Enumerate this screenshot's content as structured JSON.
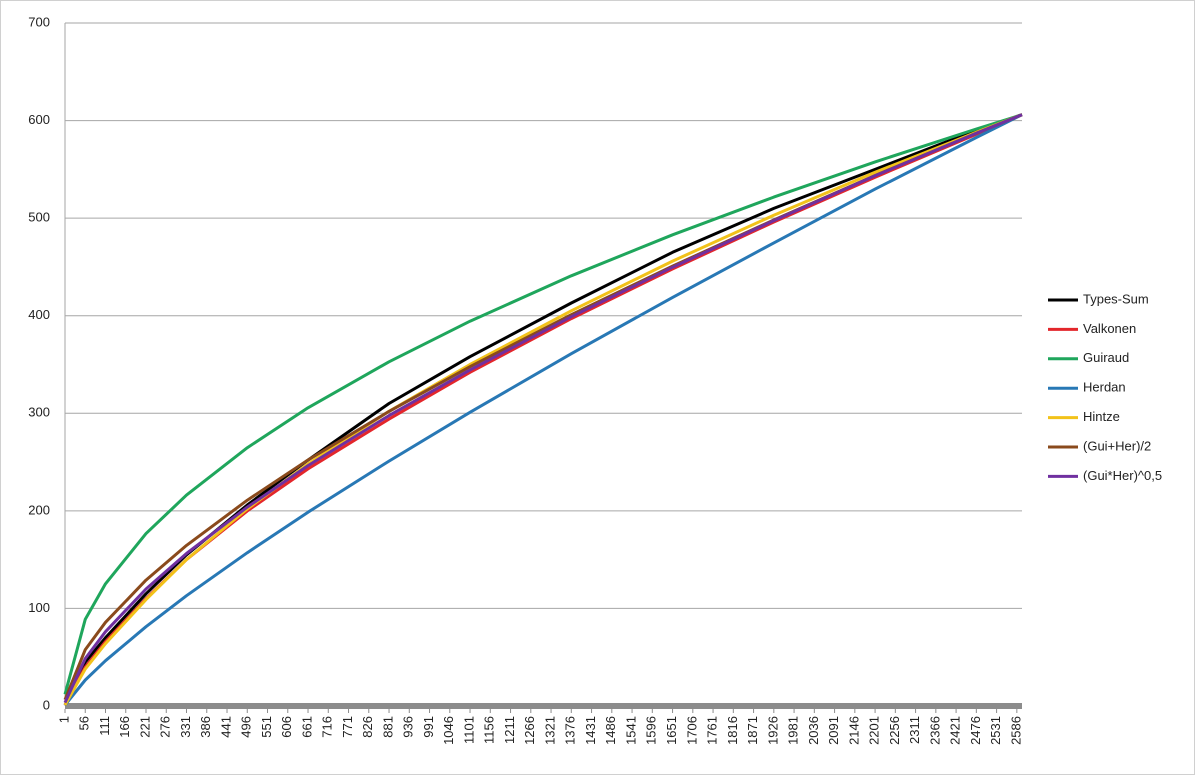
{
  "chart_data": {
    "type": "line",
    "x": [
      1,
      56,
      111,
      221,
      331,
      496,
      661,
      881,
      1101,
      1376,
      1651,
      1926,
      2201,
      2476,
      2600
    ],
    "xlim": [
      1,
      2600
    ],
    "xticks": [
      1,
      56,
      111,
      166,
      221,
      276,
      331,
      386,
      441,
      496,
      551,
      606,
      661,
      716,
      771,
      826,
      881,
      936,
      991,
      1046,
      1101,
      1156,
      1211,
      1266,
      1321,
      1376,
      1431,
      1486,
      1541,
      1596,
      1651,
      1706,
      1761,
      1816,
      1871,
      1926,
      1981,
      2036,
      2091,
      2146,
      2201,
      2256,
      2311,
      2366,
      2421,
      2476,
      2531,
      2586
    ],
    "ylim": [
      0,
      700
    ],
    "yticks": [
      0,
      100,
      200,
      300,
      400,
      500,
      600,
      700
    ],
    "grid": true,
    "legend": "right",
    "series": [
      {
        "name": "Types-Sum",
        "color": "#000000",
        "values": [
          1,
          45,
          70,
          115,
          155,
          206,
          252,
          310,
          358,
          413,
          465,
          510,
          550,
          590,
          606
        ]
      },
      {
        "name": "Valkonen",
        "color": "#e3262b",
        "values": [
          1,
          40,
          66,
          110,
          150,
          200,
          243,
          294,
          342,
          397,
          448,
          496,
          542,
          586,
          606
        ]
      },
      {
        "name": "Guiraud",
        "color": "#1fa65c",
        "values": [
          12,
          89,
          125.2,
          176.7,
          216.2,
          264.7,
          305.6,
          352.8,
          394.4,
          440.9,
          482.9,
          521.6,
          557.6,
          591.4,
          606
        ]
      },
      {
        "name": "Herdan",
        "color": "#2878b5",
        "values": [
          1,
          26.6,
          46.4,
          81.3,
          113,
          157.1,
          198.6,
          251,
          301,
          361.1,
          418.8,
          474.6,
          529.8,
          582.6,
          606
        ]
      },
      {
        "name": "Hintze",
        "color": "#f2c21a",
        "values": [
          1,
          38,
          64,
          109,
          150,
          202,
          248,
          302,
          350,
          405,
          456,
          503,
          547,
          588,
          606
        ]
      },
      {
        "name": "(Gui+Her)/2",
        "color": "#8a4a1c",
        "values": [
          6.5,
          57.8,
          85.8,
          129,
          164.6,
          210.9,
          252.1,
          301.9,
          347.7,
          401,
          450.9,
          498.1,
          543.7,
          587,
          606
        ]
      },
      {
        "name": "(Gui*Her)^0,5",
        "color": "#7030a0",
        "values": [
          3.5,
          48.7,
          76.2,
          119.9,
          156.3,
          203.9,
          246.4,
          297.6,
          344.5,
          399,
          449.7,
          497.5,
          543.5,
          587,
          606
        ]
      }
    ]
  }
}
